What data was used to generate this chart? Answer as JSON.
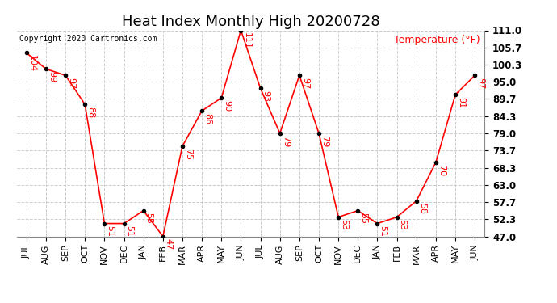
{
  "title": "Heat Index Monthly High 20200728",
  "copyright": "Copyright 2020 Cartronics.com",
  "ylabel": "Temperature (°F)",
  "categories": [
    "JUL",
    "AUG",
    "SEP",
    "OCT",
    "NOV",
    "DEC",
    "JAN",
    "FEB",
    "MAR",
    "APR",
    "MAY",
    "JUN",
    "JUL",
    "AUG",
    "SEP",
    "OCT",
    "NOV",
    "DEC",
    "JAN",
    "FEB",
    "MAR",
    "APR",
    "MAY",
    "JUN"
  ],
  "values": [
    104,
    99,
    97,
    88,
    51,
    51,
    55,
    47,
    75,
    86,
    90,
    111,
    93,
    79,
    97,
    79,
    53,
    55,
    51,
    53,
    58,
    70,
    91,
    97
  ],
  "ylim_min": 47.0,
  "ylim_max": 111.0,
  "yticks": [
    47.0,
    52.3,
    57.7,
    63.0,
    68.3,
    73.7,
    79.0,
    84.3,
    89.7,
    95.0,
    100.3,
    105.7,
    111.0
  ],
  "line_color": "red",
  "marker_color": "black",
  "grid_color": "#cccccc",
  "background_color": "#ffffff",
  "title_fontsize": 13,
  "label_fontsize": 8,
  "tick_fontsize": 8.5,
  "annotation_fontsize": 8,
  "copyright_fontsize": 7,
  "ylabel_fontsize": 9
}
